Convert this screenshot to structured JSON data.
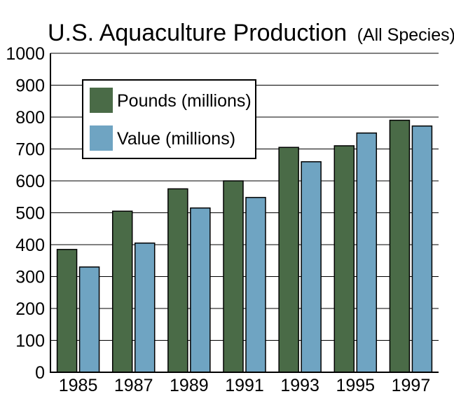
{
  "chart_data": {
    "type": "bar",
    "title": "U.S. Aquaculture Production",
    "subtitle": "(All Species)",
    "categories": [
      "1985",
      "1987",
      "1989",
      "1991",
      "1993",
      "1995",
      "1997"
    ],
    "series": [
      {
        "name": "Pounds (millions)",
        "color": "#4a6b47",
        "values": [
          385,
          505,
          575,
          600,
          705,
          710,
          790
        ]
      },
      {
        "name": "Value (millions)",
        "color": "#6fa4c2",
        "values": [
          330,
          405,
          515,
          548,
          660,
          750,
          772
        ]
      }
    ],
    "yticks": [
      "0",
      "100",
      "200",
      "300",
      "400",
      "500",
      "600",
      "700",
      "800",
      "900",
      "1000"
    ],
    "ylim": [
      0,
      1000
    ],
    "grid": true,
    "legend_position": "top-left"
  }
}
